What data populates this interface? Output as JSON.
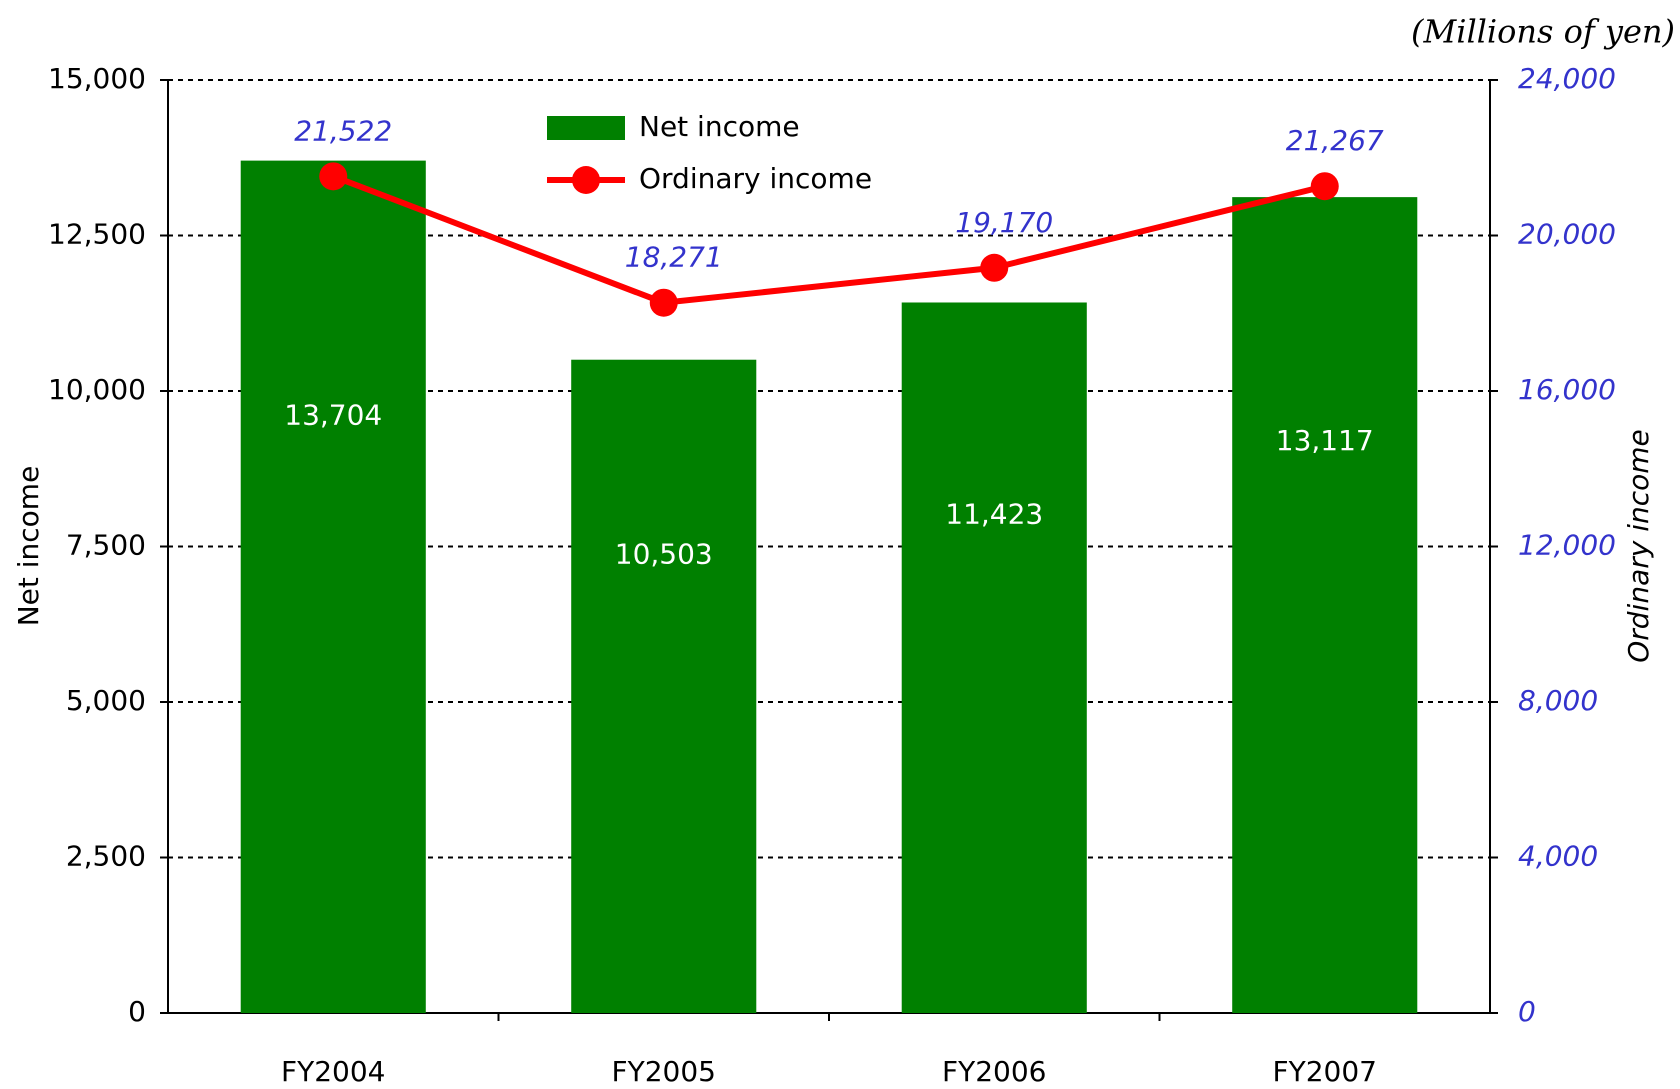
{
  "chart_data": {
    "type": "bar",
    "title": "(Millions of yen)",
    "categories": [
      "FY2004",
      "FY2005",
      "FY2006",
      "FY2007"
    ],
    "series": [
      {
        "name": "Net income",
        "type": "bar",
        "color": "#008000",
        "values": [
          13704,
          10503,
          11423,
          13117
        ],
        "value_labels": [
          "13,704",
          "10,503",
          "11,423",
          "13,117"
        ]
      },
      {
        "name": "Ordinary income",
        "type": "line",
        "axis": "y2",
        "color": "#ff0000",
        "values": [
          21522,
          18271,
          19170,
          21267
        ],
        "value_labels": [
          "21,522",
          "18,271",
          "19,170",
          "21,267"
        ]
      }
    ],
    "ylabel": "Net income",
    "y2label": "Ordinary income",
    "ylim": [
      0,
      15000
    ],
    "yticks": [
      0,
      {
        "value": 2500,
        "label": "2,500"
      },
      {
        "value": 5000,
        "label": "5,000"
      },
      {
        "value": 7500,
        "label": "7,500"
      },
      {
        "value": 10000,
        "label": "10,000"
      },
      {
        "value": 12500,
        "label": "12,500"
      },
      {
        "value": 15000,
        "label": "15,000"
      }
    ],
    "y2lim": [
      0,
      24000
    ],
    "y2ticks": [
      0,
      {
        "value": 4000,
        "label": "4,000"
      },
      {
        "value": 8000,
        "label": "8,000"
      },
      {
        "value": 12000,
        "label": "12,000"
      },
      {
        "value": 16000,
        "label": "16,000"
      },
      {
        "value": 20000,
        "label": "20,000"
      },
      {
        "value": 24000,
        "label": "24,000"
      }
    ],
    "grid": true,
    "legend": "top"
  }
}
